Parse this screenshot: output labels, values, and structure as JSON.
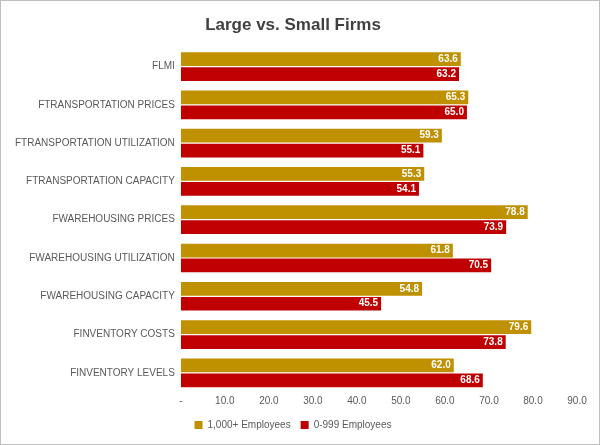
{
  "chart_data": {
    "type": "bar",
    "orientation": "horizontal",
    "title": "Large vs. Small Firms",
    "categories": [
      "FLMI",
      "FTRANSPORTATION PRICES",
      "FTRANSPORTATION UTILIZATION",
      "FTRANSPORTATION CAPACITY",
      "FWAREHOUSING PRICES",
      "FWAREHOUSING UTILIZATION",
      "FWAREHOUSING CAPACITY",
      "FINVENTORY COSTS",
      "FINVENTORY LEVELS"
    ],
    "series": [
      {
        "name": "1,000+ Employees",
        "color": "#bf9000",
        "values": [
          63.6,
          65.3,
          59.3,
          55.3,
          78.8,
          61.8,
          54.8,
          79.6,
          62.0
        ],
        "value_labels": [
          "63.6",
          "65.3",
          "59.3",
          "55.3",
          "78.8",
          "61.8",
          "54.8",
          "79.6",
          "62.0"
        ]
      },
      {
        "name": "0-999 Employees",
        "color": "#c00000",
        "values": [
          63.2,
          65.0,
          55.1,
          54.1,
          73.9,
          70.5,
          45.5,
          73.8,
          68.6
        ],
        "value_labels": [
          "63.2",
          "65.0",
          "55.1",
          "54.1",
          "73.9",
          "70.5",
          "45.5",
          "73.8",
          "68.6"
        ]
      }
    ],
    "xlim": [
      0,
      90
    ],
    "xticks": [
      {
        "value": 0,
        "label": "-"
      },
      {
        "value": 10,
        "label": "10.0"
      },
      {
        "value": 20,
        "label": "20.0"
      },
      {
        "value": 30,
        "label": "30.0"
      },
      {
        "value": 40,
        "label": "40.0"
      },
      {
        "value": 50,
        "label": "50.0"
      },
      {
        "value": 60,
        "label": "60.0"
      },
      {
        "value": 70,
        "label": "70.0"
      },
      {
        "value": 80,
        "label": "80.0"
      },
      {
        "value": 90,
        "label": "90.0"
      }
    ],
    "grid": false,
    "legend": "bottom",
    "data_labels": true
  }
}
